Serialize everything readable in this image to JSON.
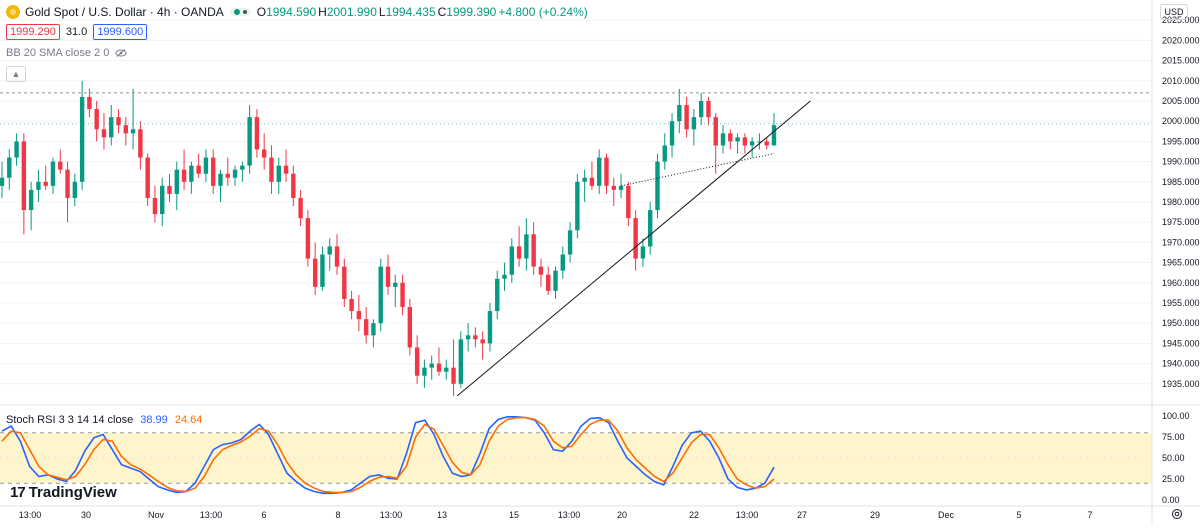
{
  "header": {
    "title": "Gold Spot / U.S. Dollar · 4h · OANDA",
    "ohlc": [
      {
        "label": "O",
        "value": "1994.590"
      },
      {
        "label": "H",
        "value": "2001.990"
      },
      {
        "label": "L",
        "value": "1994.435"
      },
      {
        "label": "C",
        "value": "1999.390"
      }
    ],
    "change": "+4.800 (+0.24%)",
    "sell_price": "1999.290",
    "spread": "31.0",
    "buy_price": "1999.600",
    "indicator": "BB 20 SMA close 2 0",
    "currency": "USD"
  },
  "colors": {
    "up": "#089981",
    "down": "#f23645",
    "k_line": "#2962ff",
    "d_line": "#ff6d00",
    "band_fill": "#fff5cc"
  },
  "stoch": {
    "label": "Stoch RSI 3 3 14 14 close",
    "k_value": "38.99",
    "d_value": "24.64",
    "upper": 80,
    "lower": 20
  },
  "branding": {
    "text": "TradingView"
  },
  "icons": [
    "gold-coin-icon",
    "eye-off-icon",
    "chevron-up-icon",
    "settings-icon",
    "tradingview-logo-icon"
  ],
  "time_labels": [
    "13:00",
    "30",
    "Nov",
    "13:00",
    "6",
    "8",
    "13:00",
    "13",
    "15",
    "13:00",
    "20",
    "22",
    "13:00",
    "27",
    "29",
    "Dec",
    "5",
    "7",
    "13:00"
  ],
  "chart_data": [
    {
      "type": "candlestick",
      "title": "Gold Spot / U.S. Dollar · 4h · OANDA",
      "ylim": [
        1930,
        2030
      ],
      "y_ticks": [
        "1935.000",
        "1940.000",
        "1945.000",
        "1950.000",
        "1955.000",
        "1960.000",
        "1965.000",
        "1970.000",
        "1975.000",
        "1980.000",
        "1985.000",
        "1990.000",
        "1995.000",
        "2000.000",
        "2005.000",
        "2010.000",
        "2015.000",
        "2020.000",
        "2025.000"
      ],
      "ohlc": [
        [
          1984,
          1990,
          1981,
          1986
        ],
        [
          1986,
          1993,
          1983,
          1991
        ],
        [
          1991,
          1997,
          1989,
          1995
        ],
        [
          1995,
          1997,
          1972,
          1978
        ],
        [
          1978,
          1985,
          1973,
          1983
        ],
        [
          1983,
          1988,
          1980,
          1985
        ],
        [
          1985,
          1989,
          1983,
          1984
        ],
        [
          1984,
          1991,
          1982,
          1990
        ],
        [
          1990,
          1993,
          1987,
          1988
        ],
        [
          1988,
          1990,
          1975,
          1981
        ],
        [
          1981,
          1987,
          1979,
          1985
        ],
        [
          1985,
          2010,
          1983,
          2006
        ],
        [
          2006,
          2008,
          2001,
          2003
        ],
        [
          2003,
          2005,
          1995,
          1998
        ],
        [
          1998,
          2002,
          1993,
          1996
        ],
        [
          1996,
          2004,
          1994,
          2001
        ],
        [
          2001,
          2003,
          1997,
          1999
        ],
        [
          1999,
          2001,
          1994,
          1997
        ],
        [
          1997,
          2008,
          1993,
          1998
        ],
        [
          1998,
          2000,
          1988,
          1991
        ],
        [
          1991,
          1992,
          1979,
          1981
        ],
        [
          1981,
          1984,
          1975,
          1977
        ],
        [
          1977,
          1986,
          1974,
          1984
        ],
        [
          1984,
          1987,
          1980,
          1982
        ],
        [
          1982,
          1990,
          1978,
          1988
        ],
        [
          1988,
          1993,
          1983,
          1985
        ],
        [
          1985,
          1990,
          1982,
          1989
        ],
        [
          1989,
          1992,
          1986,
          1987
        ],
        [
          1987,
          1993,
          1985,
          1991
        ],
        [
          1991,
          1993,
          1982,
          1984
        ],
        [
          1984,
          1988,
          1980,
          1987
        ],
        [
          1987,
          1991,
          1984,
          1986
        ],
        [
          1986,
          1989,
          1984,
          1988
        ],
        [
          1988,
          1990,
          1985,
          1989
        ],
        [
          1989,
          2004,
          1987,
          2001
        ],
        [
          2001,
          2003,
          1991,
          1993
        ],
        [
          1993,
          1997,
          1988,
          1991
        ],
        [
          1991,
          1994,
          1982,
          1985
        ],
        [
          1985,
          1991,
          1982,
          1989
        ],
        [
          1989,
          1993,
          1985,
          1987
        ],
        [
          1987,
          1989,
          1979,
          1981
        ],
        [
          1981,
          1983,
          1974,
          1976
        ],
        [
          1976,
          1978,
          1964,
          1966
        ],
        [
          1966,
          1970,
          1957,
          1959
        ],
        [
          1959,
          1969,
          1958,
          1967
        ],
        [
          1967,
          1971,
          1963,
          1969
        ],
        [
          1969,
          1972,
          1962,
          1964
        ],
        [
          1964,
          1966,
          1954,
          1956
        ],
        [
          1956,
          1958,
          1951,
          1953
        ],
        [
          1953,
          1957,
          1948,
          1951
        ],
        [
          1951,
          1954,
          1945,
          1947
        ],
        [
          1947,
          1951,
          1944,
          1950
        ],
        [
          1950,
          1966,
          1948,
          1964
        ],
        [
          1964,
          1967,
          1957,
          1959
        ],
        [
          1959,
          1962,
          1954,
          1960
        ],
        [
          1960,
          1962,
          1952,
          1954
        ],
        [
          1954,
          1956,
          1942,
          1944
        ],
        [
          1944,
          1947,
          1935,
          1937
        ],
        [
          1937,
          1941,
          1934,
          1939
        ],
        [
          1939,
          1942,
          1936,
          1940
        ],
        [
          1940,
          1944,
          1937,
          1938
        ],
        [
          1938,
          1941,
          1936,
          1939
        ],
        [
          1939,
          1946,
          1932,
          1935
        ],
        [
          1935,
          1948,
          1934,
          1946
        ],
        [
          1946,
          1950,
          1943,
          1947
        ],
        [
          1947,
          1949,
          1944,
          1946
        ],
        [
          1946,
          1948,
          1941,
          1945
        ],
        [
          1945,
          1955,
          1943,
          1953
        ],
        [
          1953,
          1963,
          1951,
          1961
        ],
        [
          1961,
          1965,
          1958,
          1962
        ],
        [
          1962,
          1971,
          1960,
          1969
        ],
        [
          1969,
          1974,
          1964,
          1966
        ],
        [
          1966,
          1976,
          1963,
          1972
        ],
        [
          1972,
          1975,
          1962,
          1964
        ],
        [
          1964,
          1966,
          1959,
          1962
        ],
        [
          1962,
          1964,
          1957,
          1958
        ],
        [
          1958,
          1964,
          1956,
          1963
        ],
        [
          1963,
          1969,
          1961,
          1967
        ],
        [
          1967,
          1975,
          1965,
          1973
        ],
        [
          1973,
          1987,
          1971,
          1985
        ],
        [
          1985,
          1988,
          1980,
          1986
        ],
        [
          1986,
          1990,
          1983,
          1984
        ],
        [
          1984,
          1993,
          1982,
          1991
        ],
        [
          1991,
          1992,
          1982,
          1984
        ],
        [
          1984,
          1986,
          1979,
          1983
        ],
        [
          1983,
          1987,
          1981,
          1984
        ],
        [
          1984,
          1985,
          1974,
          1976
        ],
        [
          1976,
          1978,
          1963,
          1966
        ],
        [
          1966,
          1971,
          1964,
          1969
        ],
        [
          1969,
          1980,
          1967,
          1978
        ],
        [
          1978,
          1992,
          1976,
          1990
        ],
        [
          1990,
          1997,
          1988,
          1994
        ],
        [
          1994,
          2002,
          1991,
          2000
        ],
        [
          2000,
          2008,
          1997,
          2004
        ],
        [
          2004,
          2006,
          1996,
          1998
        ],
        [
          1998,
          2003,
          1994,
          2001
        ],
        [
          2001,
          2007,
          1999,
          2005
        ],
        [
          2005,
          2006,
          1999,
          2001
        ],
        [
          2001,
          2002,
          1987,
          1994
        ],
        [
          1994,
          1999,
          1992,
          1997
        ],
        [
          1997,
          1998,
          1993,
          1995
        ],
        [
          1995,
          1997,
          1992,
          1996
        ],
        [
          1996,
          1997,
          1992,
          1994
        ],
        [
          1994,
          1996,
          1991,
          1995
        ],
        [
          1995,
          1997,
          1993,
          1995
        ],
        [
          1995,
          1996,
          1993,
          1994
        ],
        [
          1994,
          2002,
          1994,
          1999
        ]
      ],
      "last_price": "1999.390"
    },
    {
      "type": "line",
      "title": "Stoch RSI 3 3 14 14 close",
      "ylim": [
        0,
        100
      ],
      "y_ticks": [
        "0.00",
        "25.00",
        "50.00",
        "75.00",
        "100.00"
      ],
      "series": [
        {
          "name": "K",
          "values": [
            82,
            88,
            70,
            40,
            28,
            30,
            25,
            22,
            35,
            58,
            74,
            78,
            60,
            42,
            38,
            34,
            25,
            16,
            12,
            9,
            10,
            20,
            40,
            60,
            66,
            68,
            72,
            82,
            90,
            78,
            55,
            32,
            22,
            14,
            10,
            8,
            8,
            9,
            12,
            20,
            28,
            30,
            26,
            25,
            55,
            92,
            95,
            78,
            52,
            32,
            28,
            30,
            55,
            85,
            96,
            99,
            99,
            98,
            95,
            80,
            60,
            58,
            70,
            88,
            97,
            98,
            92,
            70,
            50,
            40,
            30,
            22,
            18,
            40,
            65,
            80,
            82,
            70,
            50,
            25,
            15,
            12,
            14,
            20,
            39
          ]
        },
        {
          "name": "D",
          "values": [
            70,
            82,
            80,
            60,
            40,
            30,
            27,
            24,
            28,
            42,
            60,
            72,
            70,
            52,
            42,
            37,
            30,
            22,
            15,
            11,
            10,
            14,
            28,
            48,
            60,
            65,
            69,
            76,
            85,
            82,
            66,
            45,
            30,
            20,
            14,
            10,
            9,
            9,
            10,
            15,
            22,
            27,
            28,
            26,
            40,
            75,
            90,
            84,
            65,
            45,
            33,
            30,
            42,
            70,
            88,
            96,
            98,
            98,
            96,
            88,
            70,
            62,
            64,
            78,
            90,
            95,
            95,
            82,
            62,
            48,
            38,
            28,
            22,
            32,
            50,
            68,
            78,
            78,
            62,
            42,
            25,
            18,
            14,
            16,
            25
          ]
        }
      ]
    }
  ]
}
